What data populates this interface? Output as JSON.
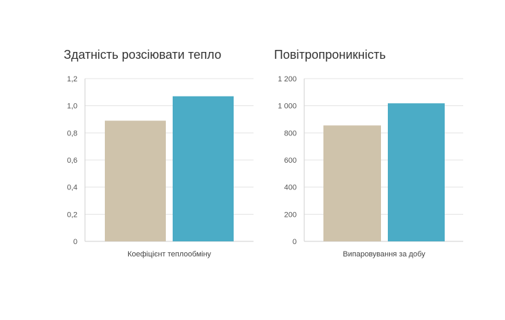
{
  "chart_data": [
    {
      "type": "bar",
      "title": "Здатність розсіювати тепло",
      "categories": [
        "Коефіцієнт теплообміну"
      ],
      "series": [
        {
          "color": "#cfc3ab",
          "values": [
            0.89
          ]
        },
        {
          "color": "#4bacc6",
          "values": [
            1.07
          ]
        }
      ],
      "ylim": [
        0,
        1.2
      ],
      "yticks": [
        "0",
        "0,2",
        "0,4",
        "0,6",
        "0,8",
        "1,0",
        "1,2"
      ],
      "ytick_values": [
        0,
        0.2,
        0.4,
        0.6,
        0.8,
        1.0,
        1.2
      ],
      "grid": true,
      "xlabel": "",
      "ylabel": ""
    },
    {
      "type": "bar",
      "title": "Повітропроникність",
      "categories": [
        "Випаровування за добу"
      ],
      "series": [
        {
          "color": "#cfc3ab",
          "values": [
            855
          ]
        },
        {
          "color": "#4bacc6",
          "values": [
            1018
          ]
        }
      ],
      "ylim": [
        0,
        1200
      ],
      "yticks": [
        "0",
        "200",
        "400",
        "600",
        "800",
        "1 000",
        "1 200"
      ],
      "ytick_values": [
        0,
        200,
        400,
        600,
        800,
        1000,
        1200
      ],
      "grid": true,
      "xlabel": "",
      "ylabel": ""
    }
  ]
}
